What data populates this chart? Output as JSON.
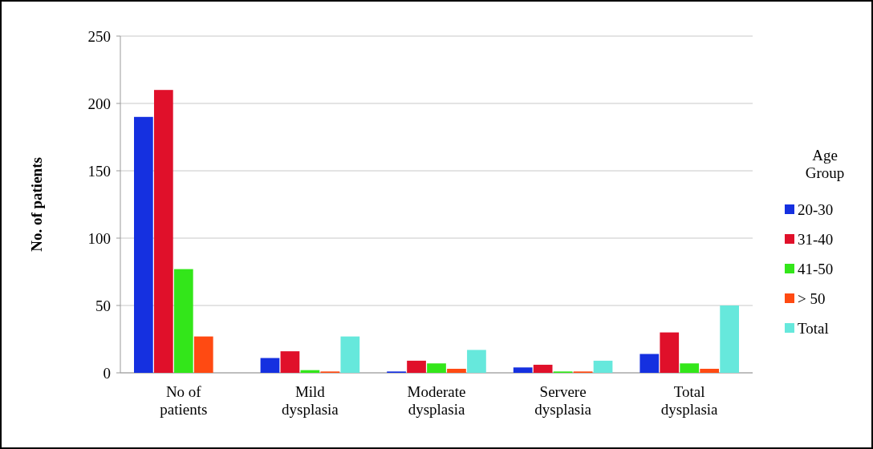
{
  "chart_data": {
    "type": "bar",
    "ylabel": "No. of patients",
    "legend_title": "Age Group",
    "categories": [
      "No of patients",
      "Mild dysplasia",
      "Moderate dysplasia",
      "Servere dysplasia",
      "Total dysplasia"
    ],
    "series": [
      {
        "name": "20-30",
        "color": "#1530e0",
        "values": [
          190,
          11,
          1,
          4,
          14
        ]
      },
      {
        "name": "31-40",
        "color": "#e0102a",
        "values": [
          210,
          16,
          9,
          6,
          30
        ]
      },
      {
        "name": "41-50",
        "color": "#33e61a",
        "values": [
          77,
          2,
          7,
          1,
          7
        ]
      },
      {
        "name": "> 50",
        "color": "#ff4a12",
        "values": [
          27,
          1,
          3,
          1,
          3
        ]
      },
      {
        "name": "Total",
        "color": "#66e8dc",
        "values": [
          null,
          27,
          17,
          9,
          50
        ]
      }
    ],
    "ylim": [
      0,
      250
    ],
    "yticks": [
      0,
      50,
      100,
      150,
      200,
      250
    ],
    "grid": "y",
    "legend": "right"
  }
}
